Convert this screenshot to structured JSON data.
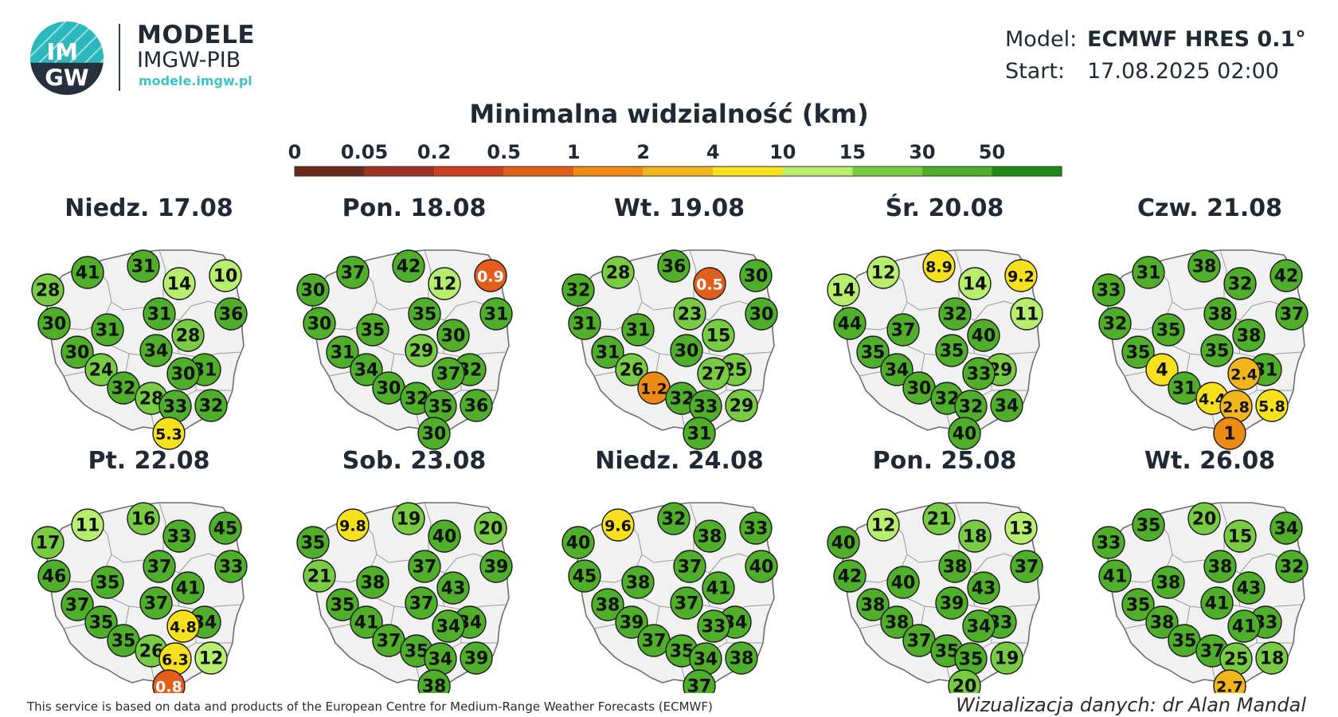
{
  "brand": {
    "logo_top": "IM",
    "logo_bottom": "GW",
    "title": "MODELE",
    "subtitle": "IMGW-PIB",
    "url": "modele.imgw.pl"
  },
  "info": {
    "model_label": "Model:",
    "model_value": "ECMWF HRES 0.1°",
    "start_label": "Start:",
    "start_value": "17.08.2025 02:00"
  },
  "title": "Minimalna widzialność (km)",
  "legend": {
    "ticks": [
      "0",
      "0.05",
      "0.2",
      "0.5",
      "1",
      "2",
      "4",
      "10",
      "15",
      "30",
      "50"
    ],
    "colors": [
      "#6b2a1c",
      "#9c3420",
      "#cc3f1f",
      "#e35d1b",
      "#ee8b15",
      "#f2b51a",
      "#f7e01c",
      "#b8ee6e",
      "#78cc44",
      "#4fae2a",
      "#1d8a16"
    ]
  },
  "colors": {
    "map_fill": "#f1f1f1",
    "map_border": "#6e6e6e",
    "marker_border": "#1c1c1c"
  },
  "days": [
    {
      "label": "Niedz. 17.08",
      "values": [
        "41",
        "31",
        "28",
        "14",
        "10",
        "36",
        "30",
        "31",
        "31",
        "28",
        "30",
        "34",
        "31",
        "24",
        "30",
        "32",
        "28",
        "33",
        "32",
        "5.3"
      ]
    },
    {
      "label": "Pon. 18.08",
      "values": [
        "37",
        "42",
        "30",
        "12",
        "0.9",
        "31",
        "30",
        "35",
        "35",
        "30",
        "31",
        "29",
        "32",
        "34",
        "37",
        "30",
        "32",
        "35",
        "36",
        "30"
      ]
    },
    {
      "label": "Wt. 19.08",
      "values": [
        "28",
        "36",
        "32",
        "0.5",
        "30",
        "30",
        "31",
        "23",
        "31",
        "15",
        "31",
        "30",
        "25",
        "26",
        "27",
        "1.2",
        "32",
        "33",
        "29",
        "31"
      ]
    },
    {
      "label": "Śr. 20.08",
      "values": [
        "12",
        "8.9",
        "14",
        "14",
        "9.2",
        "11",
        "44",
        "32",
        "37",
        "40",
        "35",
        "35",
        "29",
        "34",
        "33",
        "30",
        "32",
        "32",
        "34",
        "40"
      ]
    },
    {
      "label": "Czw. 21.08",
      "values": [
        "31",
        "38",
        "33",
        "32",
        "42",
        "37",
        "32",
        "38",
        "35",
        "38",
        "35",
        "35",
        "31",
        "4",
        "2.4",
        "31",
        "4.4",
        "2.8",
        "5.8",
        "1"
      ]
    },
    {
      "label": "Pt. 22.08",
      "values": [
        "11",
        "16",
        "17",
        "33",
        "45",
        "33",
        "46",
        "37",
        "35",
        "41",
        "37",
        "37",
        "34",
        "35",
        "4.8",
        "35",
        "26",
        "6.3",
        "12",
        "0.8"
      ]
    },
    {
      "label": "Sob. 23.08",
      "values": [
        "9.8",
        "19",
        "35",
        "40",
        "20",
        "39",
        "21",
        "37",
        "38",
        "43",
        "35",
        "37",
        "34",
        "41",
        "34",
        "37",
        "35",
        "34",
        "39",
        "38"
      ]
    },
    {
      "label": "Niedz. 24.08",
      "values": [
        "9.6",
        "32",
        "40",
        "38",
        "33",
        "40",
        "45",
        "37",
        "38",
        "41",
        "38",
        "37",
        "34",
        "39",
        "33",
        "37",
        "35",
        "34",
        "38",
        "37"
      ]
    },
    {
      "label": "Pon. 25.08",
      "values": [
        "12",
        "21",
        "40",
        "18",
        "13",
        "37",
        "42",
        "38",
        "40",
        "43",
        "38",
        "39",
        "33",
        "38",
        "34",
        "37",
        "35",
        "35",
        "19",
        "20"
      ]
    },
    {
      "label": "Wt. 26.08",
      "values": [
        "35",
        "20",
        "33",
        "15",
        "34",
        "32",
        "41",
        "38",
        "38",
        "43",
        "35",
        "41",
        "33",
        "38",
        "41",
        "35",
        "37",
        "25",
        "18",
        "2.7"
      ]
    }
  ],
  "footer": {
    "left": "This service is based on data and products of the European Centre for Medium-Range Weather Forecasts (ECMWF)",
    "right": "Wizualizacja danych: dr Alan Mandal"
  }
}
